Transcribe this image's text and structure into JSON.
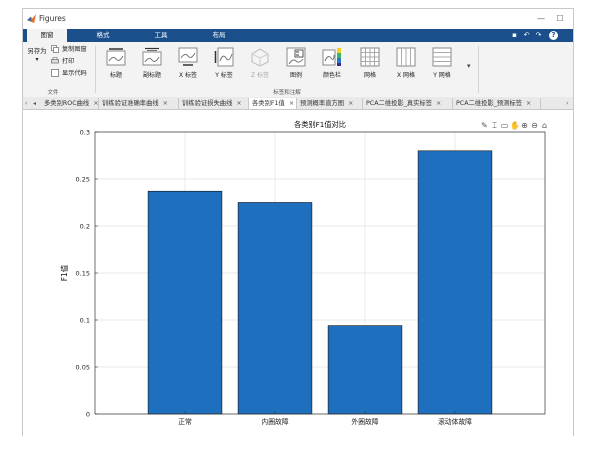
{
  "window": {
    "title": "Figures"
  },
  "ribbon_tabs": [
    "图窗",
    "格式",
    "工具",
    "布局"
  ],
  "ribbon": {
    "file_group": {
      "save_as": "另存为",
      "copy_figure": "复制图窗",
      "print": "打印",
      "show_code": "显示代码",
      "label": "文件"
    },
    "annot_group": {
      "buttons": [
        "标题",
        "副标题",
        "X 标签",
        "Y 标签",
        "Z 标签",
        "图例",
        "颜色栏",
        "网格",
        "X 网格",
        "Y 网格"
      ],
      "label": "标签和注解"
    }
  },
  "doc_tabs": [
    "多类别ROC曲线",
    "训练验证准确率曲线",
    "训练验证损失曲线",
    "各类别F1值",
    "预测概率直方图",
    "PCA二维投影_真实标签",
    "PCA二维投影_预测标签"
  ],
  "active_doc_tab": 3,
  "chart_data": {
    "type": "bar",
    "title": "各类别F1值对比",
    "xlabel": "",
    "ylabel": "F1值",
    "categories": [
      "正常",
      "内圈故障",
      "外圈故障",
      "滚动体故障"
    ],
    "values": [
      0.237,
      0.225,
      0.094,
      0.28
    ],
    "ylim": [
      0,
      0.3
    ],
    "yticks": [
      "0",
      "0.05",
      "0.1",
      "0.15",
      "0.2",
      "0.25",
      "0.3"
    ],
    "grid": true,
    "bar_color": "#1f6fbf"
  },
  "colors": {
    "ribbon_blue": "#1a4f8c",
    "bar": "#1f6fbf"
  }
}
